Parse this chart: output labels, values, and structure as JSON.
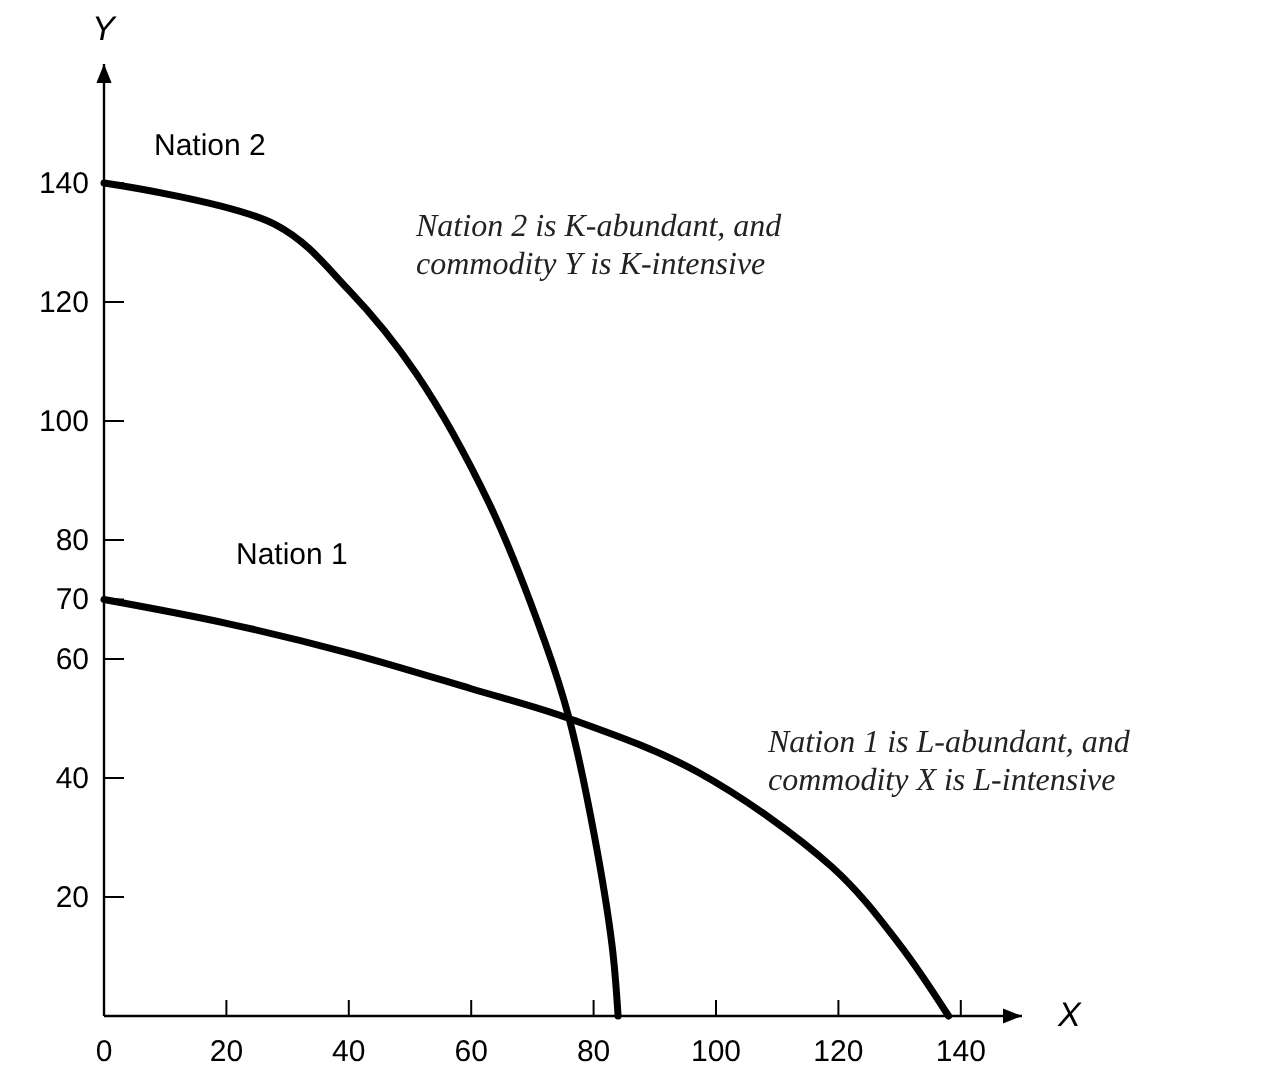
{
  "chart_data": {
    "type": "line",
    "xlabel": "X",
    "ylabel": "Y",
    "xlim": [
      0,
      150
    ],
    "ylim": [
      0,
      160
    ],
    "xticks": [
      0,
      20,
      40,
      60,
      80,
      100,
      120,
      140
    ],
    "yticks": [
      20,
      40,
      60,
      70,
      80,
      100,
      120,
      140
    ],
    "grid": false,
    "legend": false,
    "marker": "none",
    "line_style": "solid",
    "series": [
      {
        "name": "Nation 1",
        "color": "#000000",
        "x": [
          0,
          20,
          40,
          60,
          76,
          97,
          119,
          130,
          138
        ],
        "values": [
          70,
          66,
          61,
          55,
          50,
          41,
          25,
          12,
          0
        ]
      },
      {
        "name": "Nation 2",
        "color": "#000000",
        "x": [
          0,
          28,
          40,
          51,
          63,
          72,
          76,
          80,
          83,
          84
        ],
        "values": [
          140,
          133,
          122,
          108,
          86,
          63,
          50,
          31,
          12,
          0
        ]
      }
    ],
    "annotations": [
      "Nation 2 is K-abundant, and commodity Y is K-intensive",
      "Nation 1 is L-abundant, and commodity X is L-intensive"
    ]
  }
}
